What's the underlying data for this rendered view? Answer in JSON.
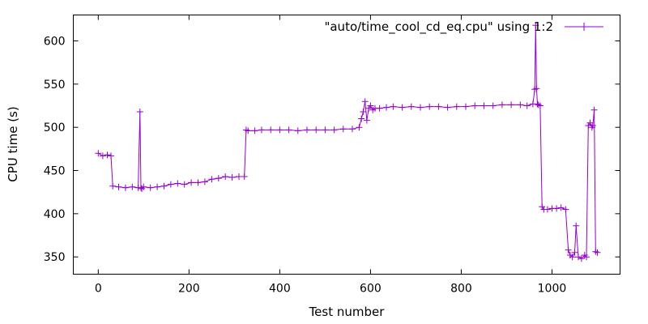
{
  "chart_data": {
    "type": "line",
    "xlabel": "Test number",
    "ylabel": "CPU time (s)",
    "xlim": [
      -55,
      1150
    ],
    "ylim": [
      330,
      630
    ],
    "xticks": [
      0,
      200,
      400,
      600,
      800,
      1000
    ],
    "yticks": [
      350,
      400,
      450,
      500,
      550,
      600
    ],
    "grid": false,
    "legend_position": "top-right",
    "series": [
      {
        "name": "\"auto/time_cool_cd_eq.cpu\" using 1:2",
        "color": "#9400d3",
        "marker": "+",
        "x": [
          0,
          10,
          20,
          28,
          32,
          45,
          60,
          75,
          88,
          92,
          94,
          96,
          100,
          115,
          130,
          145,
          160,
          175,
          190,
          205,
          220,
          235,
          250,
          265,
          280,
          295,
          310,
          322,
          326,
          330,
          345,
          360,
          380,
          400,
          420,
          440,
          460,
          480,
          500,
          520,
          540,
          560,
          575,
          580,
          584,
          588,
          592,
          596,
          600,
          605,
          610,
          620,
          635,
          650,
          670,
          690,
          710,
          730,
          750,
          770,
          790,
          810,
          830,
          850,
          870,
          890,
          910,
          930,
          945,
          958,
          962,
          964,
          966,
          968,
          970,
          974,
          978,
          982,
          990,
          1000,
          1010,
          1020,
          1030,
          1036,
          1040,
          1045,
          1050,
          1053,
          1058,
          1065,
          1072,
          1076,
          1080,
          1084,
          1088,
          1090,
          1093,
          1096,
          1100
        ],
        "y": [
          470,
          467,
          468,
          467,
          432,
          431,
          430,
          431,
          430,
          518,
          430,
          429,
          431,
          430,
          431,
          432,
          434,
          435,
          434,
          436,
          436,
          437,
          440,
          441,
          443,
          442,
          443,
          443,
          497,
          496,
          496,
          497,
          497,
          497,
          497,
          496,
          497,
          497,
          497,
          497,
          498,
          498,
          500,
          510,
          518,
          530,
          508,
          522,
          525,
          520,
          522,
          522,
          523,
          524,
          523,
          524,
          523,
          524,
          524,
          523,
          524,
          524,
          525,
          525,
          525,
          526,
          526,
          526,
          525,
          527,
          544,
          618,
          545,
          527,
          526,
          525,
          408,
          405,
          405,
          406,
          406,
          407,
          405,
          358,
          352,
          350,
          355,
          386,
          350,
          348,
          352,
          350,
          502,
          505,
          500,
          502,
          520,
          356,
          355
        ]
      }
    ]
  }
}
